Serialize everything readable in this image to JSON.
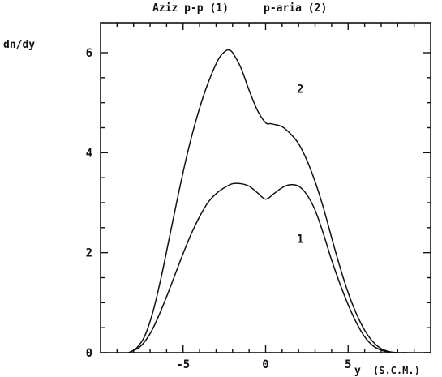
{
  "chart_data": {
    "type": "line",
    "title_left": "Aziz p-p (1)",
    "title_right": "p-aria (2)",
    "ylabel": "dn/dy",
    "xlabel": "y",
    "xlabel_note": "(S.C.M.)",
    "xlim": [
      -10,
      10
    ],
    "ylim": [
      0,
      6.6
    ],
    "xticks": [
      -5,
      0,
      5
    ],
    "xtick_labels": [
      "-5",
      "0",
      "5"
    ],
    "yticks": [
      0,
      2,
      4,
      6
    ],
    "ytick_labels": [
      "0",
      "2",
      "4",
      "6"
    ],
    "series": [
      {
        "name": "1",
        "x": [
          -8.3,
          -7.6,
          -7.0,
          -6.5,
          -6.0,
          -5.5,
          -5.0,
          -4.5,
          -4.0,
          -3.5,
          -3.0,
          -2.5,
          -2.0,
          -1.5,
          -1.0,
          -0.5,
          0.0,
          0.5,
          1.0,
          1.5,
          2.0,
          2.5,
          3.0,
          3.5,
          4.0,
          4.5,
          5.0,
          5.5,
          6.0,
          6.5,
          7.0,
          7.5,
          8.0
        ],
        "y": [
          0.0,
          0.12,
          0.38,
          0.72,
          1.12,
          1.55,
          1.98,
          2.38,
          2.72,
          3.0,
          3.18,
          3.3,
          3.38,
          3.38,
          3.33,
          3.2,
          3.07,
          3.18,
          3.3,
          3.36,
          3.33,
          3.16,
          2.85,
          2.38,
          1.85,
          1.38,
          0.96,
          0.6,
          0.32,
          0.14,
          0.05,
          0.01,
          0.0
        ]
      },
      {
        "name": "2",
        "x": [
          -8.3,
          -7.8,
          -7.3,
          -6.8,
          -6.3,
          -5.8,
          -5.3,
          -4.8,
          -4.3,
          -3.8,
          -3.3,
          -2.8,
          -2.4,
          -2.2,
          -2.0,
          -1.5,
          -1.0,
          -0.5,
          0.0,
          0.3,
          0.6,
          1.0,
          1.5,
          2.0,
          2.5,
          3.0,
          3.5,
          4.0,
          4.5,
          5.0,
          5.5,
          6.0,
          6.5,
          7.0,
          7.5,
          8.0,
          8.5
        ],
        "y": [
          0.0,
          0.1,
          0.35,
          0.85,
          1.55,
          2.35,
          3.15,
          3.9,
          4.55,
          5.1,
          5.55,
          5.9,
          6.04,
          6.05,
          6.0,
          5.7,
          5.25,
          4.85,
          4.6,
          4.58,
          4.56,
          4.52,
          4.38,
          4.18,
          3.85,
          3.42,
          2.9,
          2.3,
          1.72,
          1.2,
          0.78,
          0.45,
          0.22,
          0.08,
          0.02,
          0.0,
          0.0
        ]
      }
    ],
    "series_labels": [
      {
        "text": "1",
        "x": 2.1,
        "y": 2.2
      },
      {
        "text": "2",
        "x": 2.1,
        "y": 5.2
      }
    ]
  }
}
